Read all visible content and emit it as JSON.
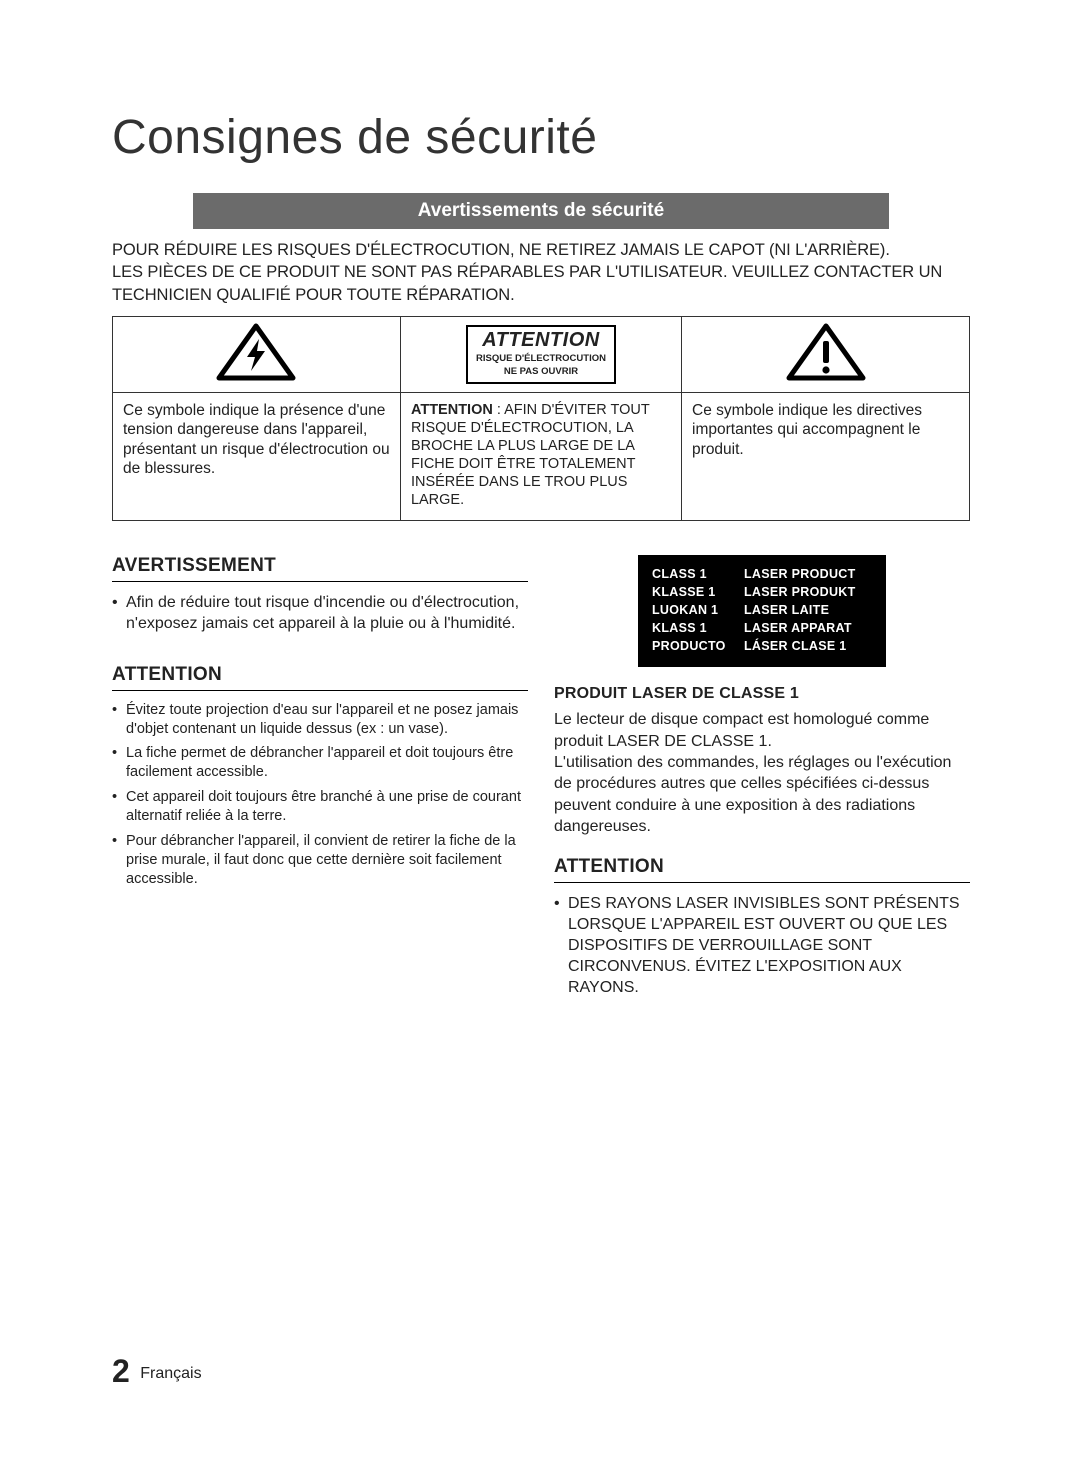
{
  "title": "Consignes de sécurité",
  "banner": "Avertissements de sécurité",
  "intro": "POUR RÉDUIRE LES RISQUES D'ÉLECTROCUTION, NE RETIREZ JAMAIS LE CAPOT (NI L'ARRIÈRE).\nLES PIÈCES DE CE PRODUIT NE SONT PAS RÉPARABLES PAR L'UTILISATEUR. VEUILLEZ CONTACTER UN TECHNICIEN QUALIFIÉ POUR TOUTE RÉPARATION.",
  "attention_box": {
    "heading": "ATTENTION",
    "sub1": "RISQUE D'ÉLECTROCUTION",
    "sub2": "NE PAS OUVRIR"
  },
  "cell_left": "Ce symbole indique la présence d'une tension dangereuse dans l'appareil, présentant un risque d'électrocution ou de blessures.",
  "cell_mid_lead": "ATTENTION",
  "cell_mid_rest": " : AFIN D'ÉVITER TOUT RISQUE D'ÉLECTROCUTION, LA BROCHE LA PLUS LARGE DE LA FICHE  DOIT ÊTRE TOTALEMENT INSÉRÉE DANS LE TROU PLUS LARGE.",
  "cell_right": "Ce symbole indique les directives importantes qui accompagnent le produit.",
  "left": {
    "h_avert": "AVERTISSEMENT",
    "avert_bullet": "Afin de réduire tout risque d'incendie ou d'électrocution, n'exposez jamais cet appareil à la pluie ou à l'humidité.",
    "h_att": "ATTENTION",
    "att_bullets": [
      "Évitez toute projection d'eau sur l'appareil et ne posez jamais d'objet contenant un liquide dessus (ex : un vase).",
      "La fiche permet de débrancher l'appareil et doit toujours être facilement accessible.",
      "Cet appareil doit toujours être branché à une prise de courant alternatif reliée à la terre.",
      "Pour débrancher l'appareil, il convient de retirer la fiche de la prise murale, il faut donc que cette dernière soit facilement accessible."
    ]
  },
  "laser_rows": [
    {
      "l": "CLASS 1",
      "r": "LASER PRODUCT"
    },
    {
      "l": "KLASSE 1",
      "r": "LASER PRODUKT"
    },
    {
      "l": "LUOKAN 1",
      "r": "LASER LAITE"
    },
    {
      "l": "KLASS 1",
      "r": "LASER APPARAT"
    },
    {
      "l": "PRODUCTO",
      "r": "LÁSER CLASE 1"
    }
  ],
  "right": {
    "subh": "PRODUIT LASER DE CLASSE 1",
    "para": "Le lecteur de disque compact est homologué comme produit LASER DE CLASSE 1.\nL'utilisation des commandes, les réglages ou l'exécution de procédures autres que celles spécifiées ci-dessus peuvent conduire à une exposition à des radiations dangereuses.",
    "h_att": "ATTENTION",
    "att_bullet": "DES RAYONS LASER INVISIBLES SONT PRÉSENTS LORSQUE L'APPAREIL EST OUVERT OU QUE LES DISPOSITIFS DE VERROUILLAGE SONT CIRCONVENUS. ÉVITEZ L'EXPOSITION AUX RAYONS."
  },
  "footer": {
    "page": "2",
    "lang": "Français"
  },
  "colors": {
    "banner_bg": "#6b6b6b",
    "text": "#222222",
    "black": "#000000",
    "white": "#ffffff"
  }
}
